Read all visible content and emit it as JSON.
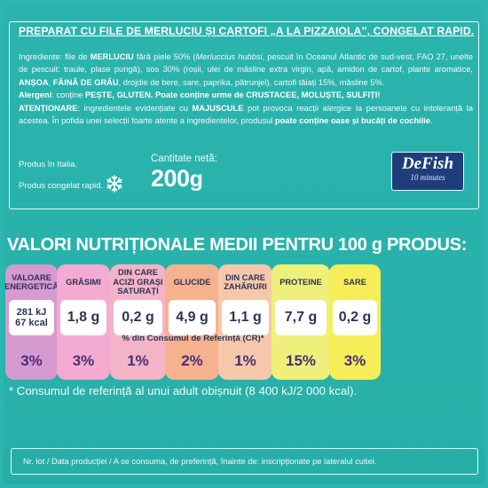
{
  "ingredients_panel": {
    "title": "PREPARAT CU FILE DE MERLUCIU ȘI CARTOFI „A LA PIZZAIOLA”, CONGELAT RAPID.",
    "ingredients_prefix": "Ingrediente: file de ",
    "ing_merluciu": "MERLUCIU",
    "ing_after_merluciu": " fără piele 50% (",
    "ing_latin": "Merluccius hubbsi",
    "ing_after_latin": ", pescuit în Oceanul Atlantic de sud-vest, FAO 27, unelte de pescuit: traule, plase pungă), sos 30% (roșii, ulei de măsline extra virgin, apă, amidon de cartof, plante aromatice, ",
    "ing_ansoa": "ANȘOA",
    "ing_comma": ", ",
    "ing_faina": "FĂINĂ DE GRÂU",
    "ing_tail": ", drojdie de bere, sare, paprika, pătrunjel), cartofi tăiați 15%, măsline 5%.",
    "allergens_label": "Alergeni",
    "allergens_mid": ": conține ",
    "allergens_bold": "PEȘTE, GLUTEN. Poate conține urme de CRUSTACEE, MOLUȘTE, SULFIȚI!",
    "attention_label": "ATENȚIONARE",
    "attention_text": ": ingredientele evidențiate cu ",
    "attention_caps": "MAJUSCULE",
    "attention_text2": " pot provoca reacții alergice la persoanele cu intoleranță la acestea. În pofida unei selecții foarte atente a ingredientelor, produsul ",
    "attention_bold": "poate conține oase și bucăți de cochilie",
    "attention_end": ".",
    "made_in": "Produs în Italia.",
    "frozen": "Produs congelat rapid.",
    "snowflake_icon": "snowflake-icon",
    "net_quantity_label": "Cantitate netă:",
    "net_quantity_value": "200",
    "net_quantity_unit": "g",
    "logo_brand": "DeFish",
    "logo_sub": "10 minutes"
  },
  "nutrition": {
    "title": "VALORI NUTRIȚIONALE MEDII PENTRU 100 g PRODUS:",
    "reference_band": "% din Consumul de Referință (CR)*",
    "items": [
      {
        "header": "VALOARE ENERGETICĂ",
        "value": "281 kJ\n67 kcal",
        "percent": "3%"
      },
      {
        "header": "GRĂSIMI",
        "value": "1,8 g",
        "percent": "3%"
      },
      {
        "header": "DIN CARE ACIZI GRAȘI SATURAȚI",
        "value": "0,2 g",
        "percent": "1%"
      },
      {
        "header": "GLUCIDE",
        "value": "4,9 g",
        "percent": "2%"
      },
      {
        "header": "DIN CARE ZAHĂRURI",
        "value": "1,1 g",
        "percent": "1%"
      },
      {
        "header": "PROTEINE",
        "value": "7,7 g",
        "percent": "15%"
      },
      {
        "header": "SARE",
        "value": "0,2 g",
        "percent": "3%"
      }
    ],
    "footnote": "* Consumul de referință al unui adult obișnuit (8 400 kJ/2 000 kcal)."
  },
  "lot": {
    "text": "Nr. lot / Data producției / A se consuma, de preferință, înainte de: inscripționate pe lateralul cutiei."
  },
  "colors": {
    "background": "#2bb7b0",
    "energy": "#d59acf",
    "fat": "#f4abd2",
    "saturates": "#f2b4c6",
    "carbs": "#f5b28f",
    "sugars": "#f6c8ab",
    "protein": "#eef07a",
    "salt": "#f6ee58",
    "logo": "#1f3d7a"
  }
}
